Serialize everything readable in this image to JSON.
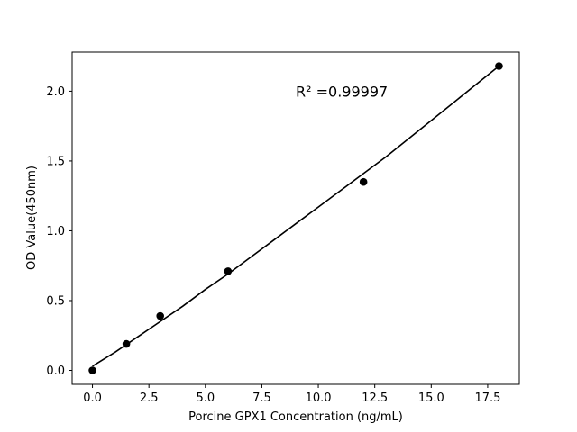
{
  "chart_data": {
    "type": "scatter",
    "title": "",
    "xlabel": "Porcine GPX1 Concentration (ng/mL)",
    "ylabel": "OD Value(450nm)",
    "xlim": [
      -0.9,
      18.9
    ],
    "ylim": [
      -0.1,
      2.28
    ],
    "x_ticks": [
      0.0,
      2.5,
      5.0,
      7.5,
      10.0,
      12.5,
      15.0,
      17.5
    ],
    "x_tick_labels": [
      "0.0",
      "2.5",
      "5.0",
      "7.5",
      "10.0",
      "12.5",
      "15.0",
      "17.5"
    ],
    "y_ticks": [
      0.0,
      0.5,
      1.0,
      1.5,
      2.0
    ],
    "y_tick_labels": [
      "0.0",
      "0.5",
      "1.0",
      "1.5",
      "2.0"
    ],
    "grid": false,
    "series": [
      {
        "kind": "points",
        "color": "#000000",
        "x": [
          0,
          1.5,
          3,
          6,
          12,
          18
        ],
        "y": [
          0.0,
          0.19,
          0.39,
          0.71,
          1.35,
          2.18
        ]
      },
      {
        "kind": "fit-line",
        "color": "#000000",
        "x": [
          0,
          1,
          2,
          3,
          4,
          5,
          6,
          7,
          8,
          9,
          10,
          11,
          12,
          13,
          14,
          15,
          16,
          17,
          18
        ],
        "y": [
          0.03,
          0.13,
          0.24,
          0.35,
          0.46,
          0.58,
          0.69,
          0.81,
          0.93,
          1.05,
          1.17,
          1.29,
          1.41,
          1.53,
          1.66,
          1.79,
          1.92,
          2.05,
          2.18
        ]
      }
    ],
    "annotation": {
      "text": "R² =0.99997",
      "x": 9.0,
      "y": 1.96
    }
  }
}
